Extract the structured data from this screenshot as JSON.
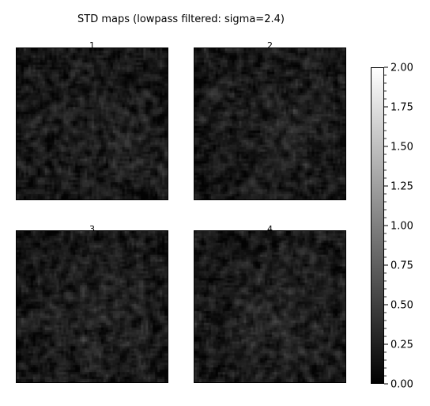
{
  "figure": {
    "title": "STD maps (lowpass filtered: sigma=2.4)"
  },
  "chart_data": {
    "type": "heatmap",
    "title": "STD maps (lowpass filtered: sigma=2.4)",
    "colormap": "gray",
    "panels": [
      {
        "title": "1",
        "approx_mean": 0.3
      },
      {
        "title": "2",
        "approx_mean": 0.3
      },
      {
        "title": "3",
        "approx_mean": 0.3
      },
      {
        "title": "4",
        "approx_mean": 0.3
      }
    ],
    "colorbar": {
      "vmin": 0.0,
      "vmax": 2.0,
      "ticks": [
        "0.00",
        "0.25",
        "0.50",
        "0.75",
        "1.00",
        "1.25",
        "1.50",
        "1.75",
        "2.00"
      ],
      "minor_ticks_per_major": 4
    }
  }
}
